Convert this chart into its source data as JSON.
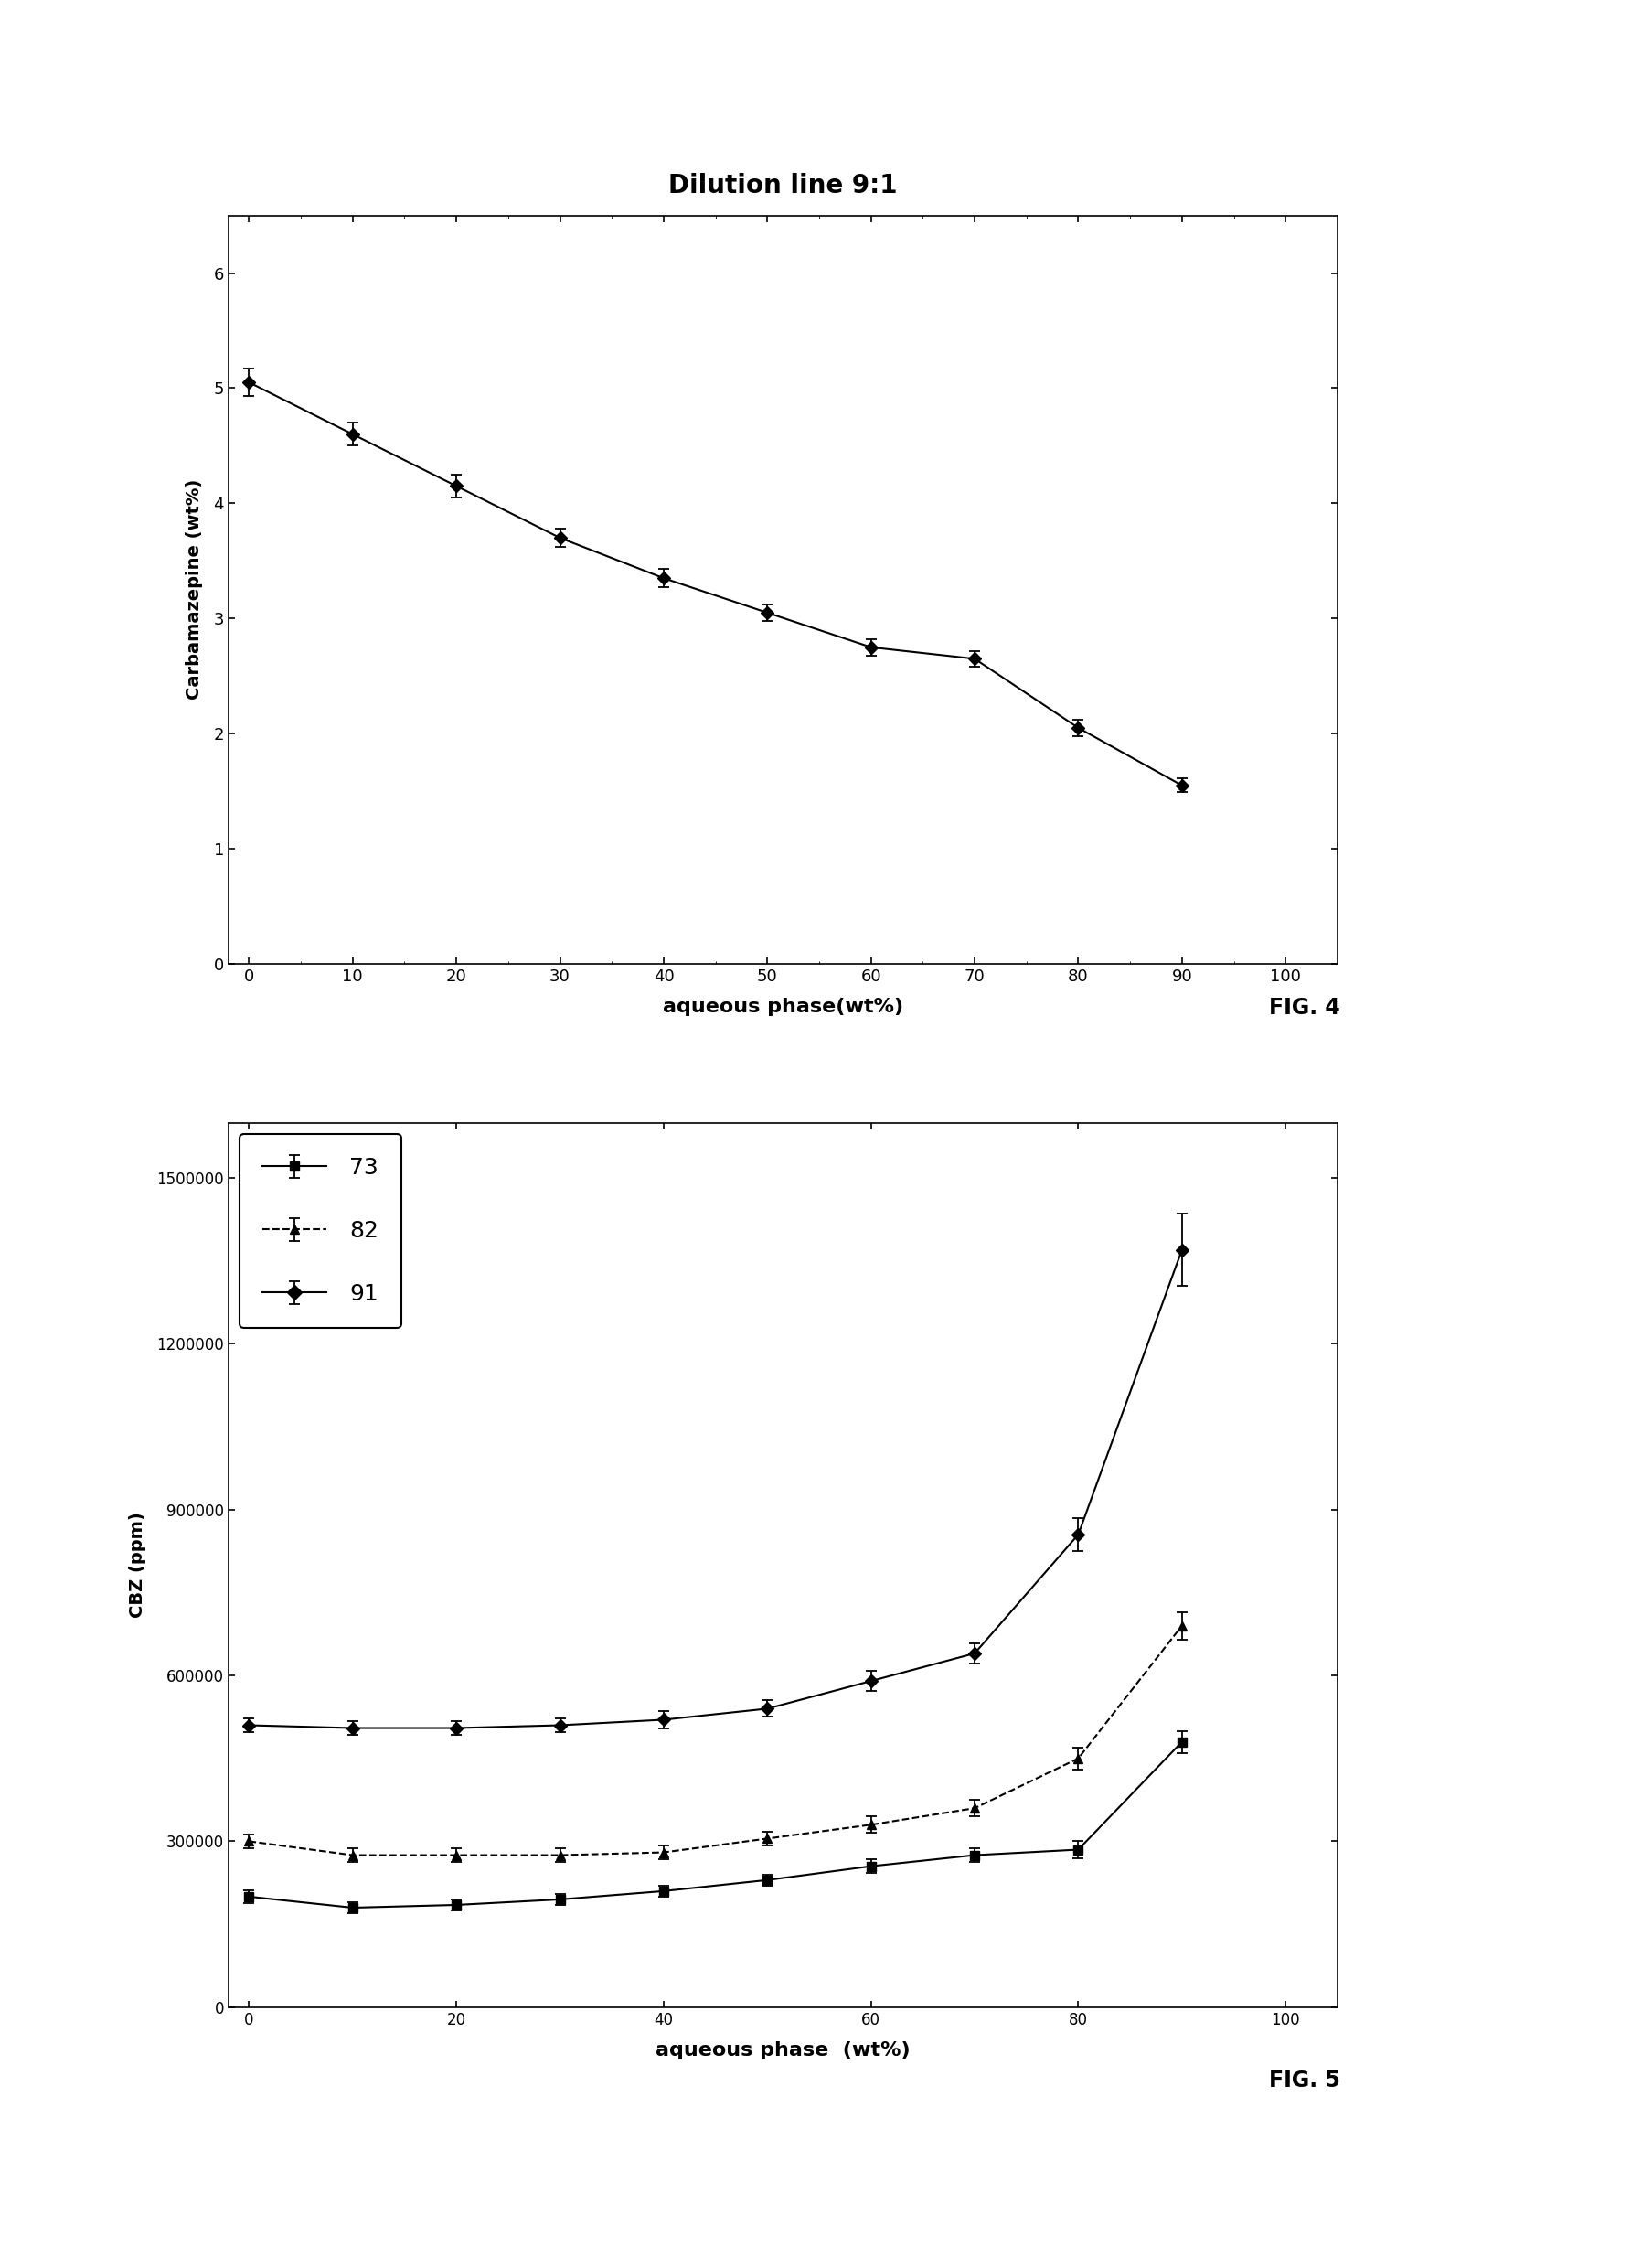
{
  "fig4": {
    "title": "Dilution line 9:1",
    "xlabel": "aqueous phase(wt%)",
    "ylabel": "Carbamazepine (wt%)",
    "x": [
      0,
      10,
      20,
      30,
      40,
      50,
      60,
      70,
      80,
      90
    ],
    "y": [
      5.05,
      4.6,
      4.15,
      3.7,
      3.35,
      3.05,
      2.75,
      2.65,
      2.05,
      1.55
    ],
    "yerr": [
      0.12,
      0.1,
      0.1,
      0.08,
      0.08,
      0.07,
      0.07,
      0.07,
      0.07,
      0.06
    ],
    "xlim": [
      -2,
      105
    ],
    "ylim": [
      0,
      6.5
    ],
    "xticks": [
      0,
      10,
      20,
      30,
      40,
      50,
      60,
      70,
      80,
      90,
      100
    ],
    "yticks": [
      0,
      1,
      2,
      3,
      4,
      5,
      6
    ],
    "fig_label": "FIG. 4"
  },
  "fig5": {
    "xlabel": "aqueous phase  (wt%)",
    "ylabel": "CBZ (ppm)",
    "xlim": [
      -2,
      105
    ],
    "ylim": [
      0,
      1600000
    ],
    "xticks": [
      0,
      20,
      40,
      60,
      80,
      100
    ],
    "yticks": [
      0,
      300000,
      600000,
      900000,
      1200000,
      1500000
    ],
    "ytick_labels": [
      "0",
      "300000",
      "600000",
      "900000",
      "1200000",
      "1500000"
    ],
    "fig_label": "FIG. 5",
    "series": {
      "73": {
        "x": [
          0,
          10,
          20,
          30,
          40,
          50,
          60,
          70,
          80,
          90
        ],
        "y": [
          200000,
          180000,
          185000,
          195000,
          210000,
          230000,
          255000,
          275000,
          285000,
          480000
        ],
        "yerr": [
          12000,
          10000,
          10000,
          10000,
          10000,
          10000,
          12000,
          12000,
          15000,
          20000
        ],
        "marker": "s",
        "linestyle": "-"
      },
      "82": {
        "x": [
          0,
          10,
          20,
          30,
          40,
          50,
          60,
          70,
          80,
          90
        ],
        "y": [
          300000,
          275000,
          275000,
          275000,
          280000,
          305000,
          330000,
          360000,
          450000,
          690000
        ],
        "yerr": [
          12000,
          12000,
          12000,
          12000,
          12000,
          12000,
          15000,
          15000,
          20000,
          25000
        ],
        "marker": "^",
        "linestyle": "--"
      },
      "91": {
        "x": [
          0,
          10,
          20,
          30,
          40,
          50,
          60,
          70,
          80,
          90
        ],
        "y": [
          510000,
          505000,
          505000,
          510000,
          520000,
          540000,
          590000,
          640000,
          855000,
          1370000
        ],
        "yerr": [
          12000,
          12000,
          12000,
          12000,
          15000,
          15000,
          18000,
          18000,
          30000,
          65000
        ],
        "marker": "D",
        "linestyle": "-"
      }
    },
    "legend_order": [
      "73",
      "82",
      "91"
    ]
  }
}
